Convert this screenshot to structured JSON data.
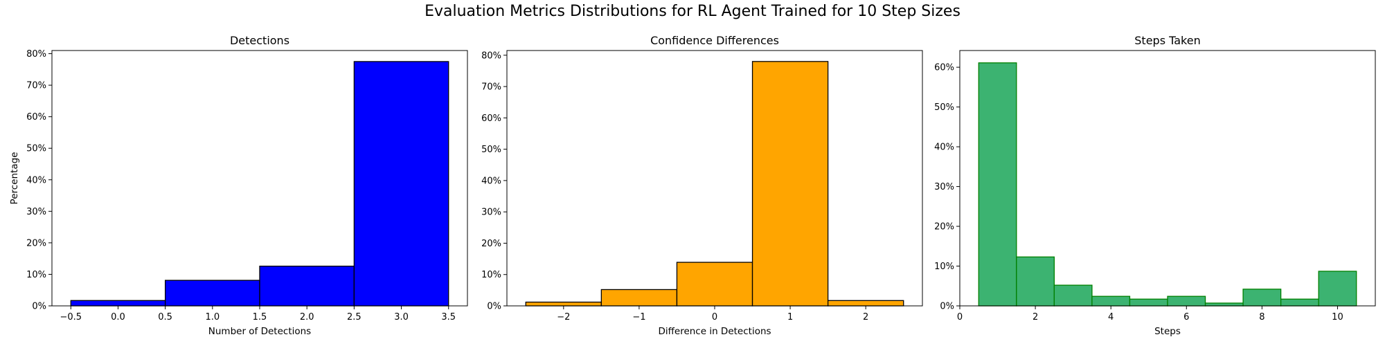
{
  "figure": {
    "title": "Evaluation Metrics Distributions for RL Agent Trained for 10 Step Sizes"
  },
  "chart_data": [
    {
      "type": "bar",
      "title": "Detections",
      "xlabel": "Number of Detections",
      "ylabel": "Percentage",
      "color": "#0000ff",
      "edgecolor": "#000000",
      "bins": [
        [
          -0.5,
          0.5
        ],
        [
          0.5,
          1.5
        ],
        [
          1.5,
          2.5
        ],
        [
          2.5,
          3.5
        ]
      ],
      "values": [
        1.7,
        8.1,
        12.6,
        77.5
      ],
      "xlim": [
        -0.7,
        3.7
      ],
      "ylim": [
        0,
        81
      ],
      "xticks": [
        -0.5,
        0.0,
        0.5,
        1.0,
        1.5,
        2.0,
        2.5,
        3.0,
        3.5
      ],
      "xtick_labels": [
        "−0.5",
        "0.0",
        "0.5",
        "1.0",
        "1.5",
        "2.0",
        "2.5",
        "3.0",
        "3.5"
      ],
      "yticks": [
        0,
        10,
        20,
        30,
        40,
        50,
        60,
        70,
        80
      ],
      "ytick_labels": [
        "0%",
        "10%",
        "20%",
        "30%",
        "40%",
        "50%",
        "60%",
        "70%",
        "80%"
      ],
      "grid": false
    },
    {
      "type": "bar",
      "title": "Confidence Differences",
      "xlabel": "Difference in Detections",
      "ylabel": "",
      "color": "#ffa500",
      "edgecolor": "#000000",
      "bins": [
        [
          -2.5,
          -1.5
        ],
        [
          -1.5,
          -0.5
        ],
        [
          -0.5,
          0.5
        ],
        [
          0.5,
          1.5
        ],
        [
          1.5,
          2.5
        ]
      ],
      "values": [
        1.2,
        5.2,
        13.9,
        78.0,
        1.7
      ],
      "xlim": [
        -2.75,
        2.75
      ],
      "ylim": [
        0,
        81.5
      ],
      "xticks": [
        -2,
        -1,
        0,
        1,
        2
      ],
      "xtick_labels": [
        "−2",
        "−1",
        "0",
        "1",
        "2"
      ],
      "yticks": [
        0,
        10,
        20,
        30,
        40,
        50,
        60,
        70,
        80
      ],
      "ytick_labels": [
        "0%",
        "10%",
        "20%",
        "30%",
        "40%",
        "50%",
        "60%",
        "70%",
        "80%"
      ],
      "grid": false
    },
    {
      "type": "bar",
      "title": "Steps Taken",
      "xlabel": "Steps",
      "ylabel": "",
      "color": "#3cb371",
      "edgecolor": "#008000",
      "bins": [
        [
          0.5,
          1.5
        ],
        [
          1.5,
          2.5
        ],
        [
          2.5,
          3.5
        ],
        [
          3.5,
          4.5
        ],
        [
          4.5,
          5.5
        ],
        [
          5.5,
          6.5
        ],
        [
          6.5,
          7.5
        ],
        [
          7.5,
          8.5
        ],
        [
          8.5,
          9.5
        ],
        [
          9.5,
          10.5
        ]
      ],
      "values": [
        61.1,
        12.3,
        5.2,
        2.4,
        1.7,
        2.4,
        0.7,
        4.2,
        1.7,
        8.7
      ],
      "xlim": [
        0,
        11
      ],
      "ylim": [
        0,
        64.2
      ],
      "xticks": [
        0,
        2,
        4,
        6,
        8,
        10
      ],
      "xtick_labels": [
        "0",
        "2",
        "4",
        "6",
        "8",
        "10"
      ],
      "yticks": [
        0,
        10,
        20,
        30,
        40,
        50,
        60
      ],
      "ytick_labels": [
        "0%",
        "10%",
        "20%",
        "30%",
        "40%",
        "50%",
        "60%"
      ],
      "grid": false
    }
  ]
}
